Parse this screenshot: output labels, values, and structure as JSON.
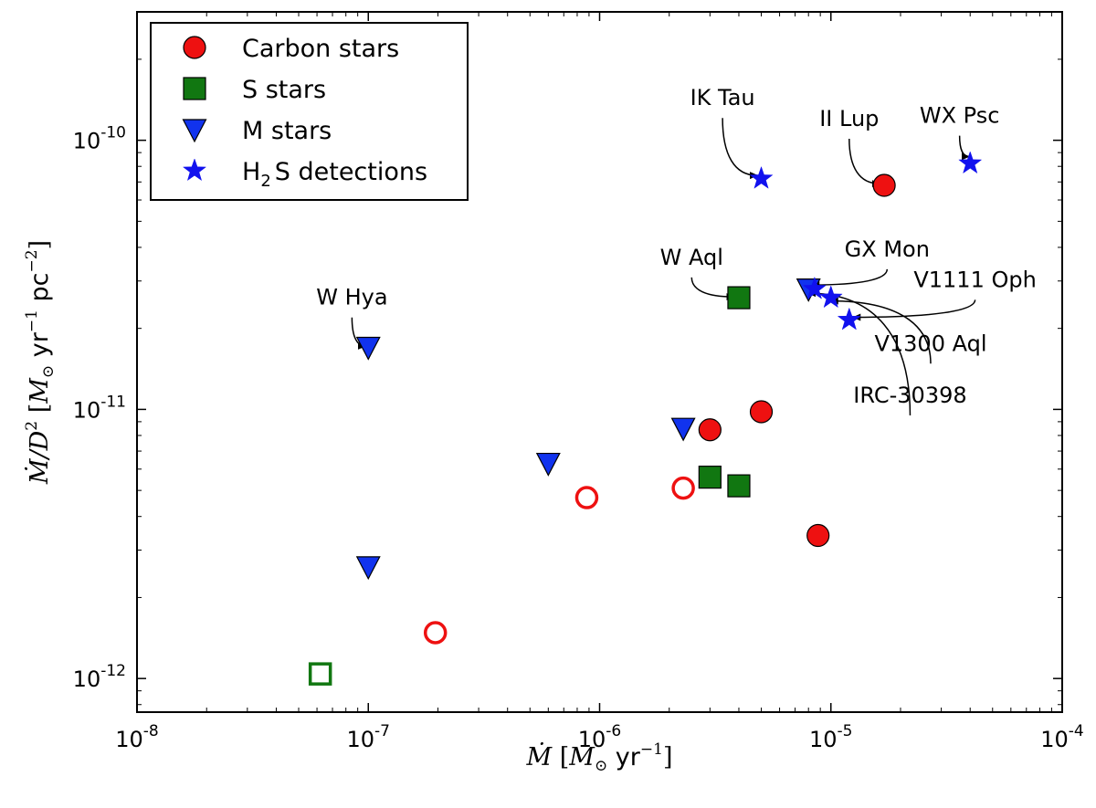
{
  "chart_data": {
    "type": "scatter",
    "title": "",
    "xlabel": {
      "parts": [
        {
          "id": "mdot",
          "text": "Ṁ"
        },
        {
          "id": "open",
          "text": " ["
        },
        {
          "id": "msun",
          "text": "M"
        },
        {
          "id": "sun",
          "text": "⊙"
        },
        {
          "id": "yr",
          "text": " yr"
        },
        {
          "id": "exp",
          "text": "−1"
        },
        {
          "id": "close",
          "text": "]"
        }
      ]
    },
    "ylabel": {
      "parts": [
        {
          "id": "mdot",
          "text": "Ṁ/D"
        },
        {
          "id": "sq",
          "text": "2"
        },
        {
          "id": "open",
          "text": "  ["
        },
        {
          "id": "msun",
          "text": "M"
        },
        {
          "id": "sun",
          "text": "⊙"
        },
        {
          "id": "yr",
          "text": " yr"
        },
        {
          "id": "exp1",
          "text": "−1"
        },
        {
          "id": "pc",
          "text": "  pc"
        },
        {
          "id": "exp2",
          "text": "−2"
        },
        {
          "id": "close",
          "text": "]"
        }
      ]
    },
    "xscale": "log",
    "yscale": "log",
    "xlim": [
      1e-08,
      0.0001
    ],
    "ylim": [
      7.5e-13,
      3e-10
    ],
    "x_ticks": [
      {
        "value": 1e-08,
        "base": "10",
        "exp": "-8"
      },
      {
        "value": 1e-07,
        "base": "10",
        "exp": "-7"
      },
      {
        "value": 1e-06,
        "base": "10",
        "exp": "-6"
      },
      {
        "value": 1e-05,
        "base": "10",
        "exp": "-5"
      },
      {
        "value": 0.0001,
        "base": "10",
        "exp": "-4"
      }
    ],
    "y_ticks": [
      {
        "value": 1e-12,
        "base": "10",
        "exp": "-12"
      },
      {
        "value": 1e-11,
        "base": "10",
        "exp": "-11"
      },
      {
        "value": 1e-10,
        "base": "10",
        "exp": "-10"
      }
    ],
    "legend": {
      "position": "top-left",
      "entries": [
        {
          "series": "carbon",
          "label": "Carbon stars"
        },
        {
          "series": "s",
          "label": "S stars"
        },
        {
          "series": "m",
          "label": "M stars"
        },
        {
          "series": "h2s",
          "label_main": "H",
          "label_sub": "2",
          "label_rest": "S detections"
        }
      ]
    },
    "series": [
      {
        "name": "Carbon stars",
        "key": "carbon",
        "marker": "circle",
        "color": "#ee1111",
        "points": [
          {
            "x": 1.7e-05,
            "y": 6.8e-11,
            "filled": true
          },
          {
            "x": 5e-06,
            "y": 9.8e-12,
            "filled": true
          },
          {
            "x": 3e-06,
            "y": 8.4e-12,
            "filled": true
          },
          {
            "x": 8.8e-06,
            "y": 3.4e-12,
            "filled": true
          },
          {
            "x": 2.3e-06,
            "y": 5.1e-12,
            "filled": false
          },
          {
            "x": 8.8e-07,
            "y": 4.7e-12,
            "filled": false
          },
          {
            "x": 1.95e-07,
            "y": 1.48e-12,
            "filled": false
          }
        ]
      },
      {
        "name": "S stars",
        "key": "s",
        "marker": "square",
        "color": "#117711",
        "points": [
          {
            "x": 4e-06,
            "y": 2.6e-11,
            "filled": true
          },
          {
            "x": 3e-06,
            "y": 5.6e-12,
            "filled": true
          },
          {
            "x": 4e-06,
            "y": 5.2e-12,
            "filled": true
          },
          {
            "x": 6.2e-08,
            "y": 1.04e-12,
            "filled": false
          }
        ]
      },
      {
        "name": "M stars",
        "key": "m",
        "marker": "triangle-down",
        "color": "#1133ee",
        "points": [
          {
            "x": 1e-07,
            "y": 1.7e-11,
            "filled": true
          },
          {
            "x": 2.3e-06,
            "y": 8.5e-12,
            "filled": true
          },
          {
            "x": 6e-07,
            "y": 6.3e-12,
            "filled": true
          },
          {
            "x": 1e-07,
            "y": 2.6e-12,
            "filled": true
          },
          {
            "x": 8e-06,
            "y": 2.8e-11,
            "filled": true
          }
        ]
      },
      {
        "name": "H2S detections",
        "key": "h2s",
        "marker": "star",
        "color": "#1111ee",
        "points": [
          {
            "x": 5e-06,
            "y": 7.2e-11,
            "filled": true
          },
          {
            "x": 4e-05,
            "y": 8.2e-11,
            "filled": true
          },
          {
            "x": 8.5e-06,
            "y": 2.8e-11,
            "filled": true
          },
          {
            "x": 1e-05,
            "y": 2.6e-11,
            "filled": true
          },
          {
            "x": 1.2e-05,
            "y": 2.15e-11,
            "filled": true
          }
        ]
      }
    ],
    "annotations": [
      {
        "text": "IK Tau",
        "text_x": 3.4e-06,
        "text_y": 1.35e-10,
        "target_x": 4.8e-06,
        "target_y": 7.4e-11
      },
      {
        "text": "II Lup",
        "text_x": 1.2e-05,
        "text_y": 1.13e-10,
        "target_x": 1.62e-05,
        "target_y": 6.9e-11
      },
      {
        "text": "WX Psc",
        "text_x": 3.6e-05,
        "text_y": 1.16e-10,
        "target_x": 3.95e-05,
        "target_y": 8.7e-11
      },
      {
        "text": "W Aql",
        "text_x": 2.5e-06,
        "text_y": 3.45e-11,
        "target_x": 3.8e-06,
        "target_y": 2.62e-11
      },
      {
        "text": "W Hya",
        "text_x": 8.5e-08,
        "text_y": 2.45e-11,
        "target_x": 9.7e-08,
        "target_y": 1.72e-11
      },
      {
        "text": "GX Mon",
        "text_x": 1.75e-05,
        "text_y": 3.7e-11,
        "target_x": 8.3e-06,
        "target_y": 2.9e-11
      },
      {
        "text": "V1111 Oph",
        "text_x": 4.2e-05,
        "text_y": 2.85e-11,
        "target_x": 1.25e-05,
        "target_y": 2.2e-11
      },
      {
        "text": "V1300 Aql",
        "text_x": 2.7e-05,
        "text_y": 1.65e-11,
        "target_x": 1e-05,
        "target_y": 2.53e-11
      },
      {
        "text": "IRC-30398",
        "text_x": 2.2e-05,
        "text_y": 1.06e-11,
        "target_x": 8e-06,
        "target_y": 2.7e-11
      }
    ]
  }
}
